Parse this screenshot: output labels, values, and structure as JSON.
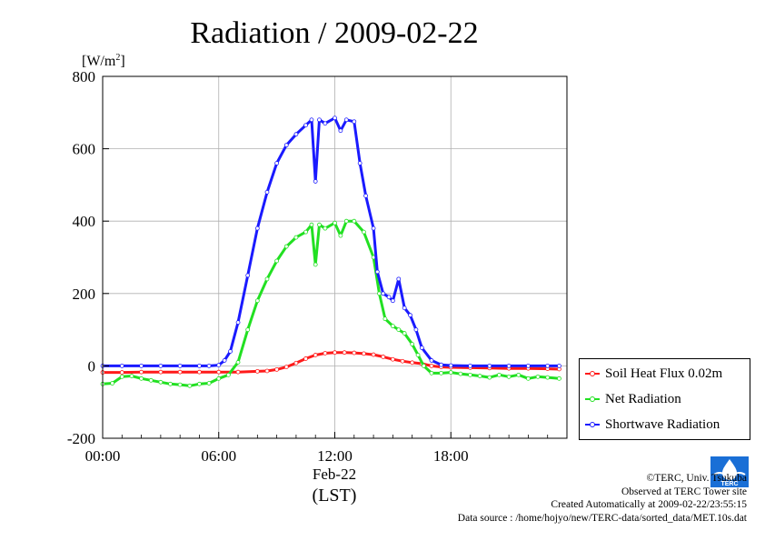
{
  "chart_data": {
    "type": "line",
    "title": "Radiation / 2009-02-22",
    "ylabel_unit": "[W/m",
    "ylabel_sup": "2",
    "ylabel_close": "]",
    "ylim": [
      -200,
      800
    ],
    "yticks": [
      -200,
      0,
      200,
      400,
      600,
      800
    ],
    "xlim": [
      0,
      24
    ],
    "xticks": [
      {
        "x": 0,
        "label": "00:00"
      },
      {
        "x": 6,
        "label": "06:00"
      },
      {
        "x": 12,
        "label": "12:00"
      },
      {
        "x": 18,
        "label": "18:00"
      }
    ],
    "xlabel_date": "Feb-22",
    "xlabel": "(LST)",
    "grid": true,
    "legend_placement": "right",
    "series": [
      {
        "name": "Soil Heat Flux 0.02m",
        "color": "#ff1a1a",
        "x": [
          0,
          1,
          2,
          3,
          4,
          5,
          6,
          7,
          8,
          8.5,
          9,
          9.5,
          10,
          10.5,
          11,
          11.5,
          12,
          12.5,
          13,
          13.5,
          14,
          14.5,
          15,
          15.5,
          16,
          16.5,
          17,
          17.5,
          18,
          19,
          20,
          21,
          22,
          23,
          23.6
        ],
        "y": [
          -18,
          -18,
          -17,
          -17,
          -17,
          -17,
          -17,
          -17,
          -15,
          -14,
          -10,
          -3,
          8,
          20,
          30,
          35,
          37,
          37,
          36,
          34,
          31,
          25,
          18,
          13,
          9,
          6,
          0,
          -3,
          -4,
          -5,
          -6,
          -7,
          -7,
          -8,
          -9
        ]
      },
      {
        "name": "Net Radiation",
        "color": "#22e022",
        "x": [
          0,
          0.5,
          1,
          1.5,
          2,
          2.5,
          3,
          3.5,
          4,
          4.5,
          5,
          5.5,
          6,
          6.5,
          7,
          7.5,
          8,
          8.5,
          9,
          9.5,
          10,
          10.5,
          10.8,
          11,
          11.2,
          11.5,
          12,
          12.3,
          12.6,
          13,
          13.5,
          14,
          14.3,
          14.6,
          15,
          15.3,
          15.6,
          16,
          16.3,
          16.6,
          17,
          17.5,
          18,
          18.5,
          19,
          19.5,
          20,
          20.5,
          21,
          21.5,
          22,
          22.5,
          23,
          23.6
        ],
        "y": [
          -50,
          -48,
          -30,
          -28,
          -35,
          -40,
          -45,
          -50,
          -52,
          -55,
          -50,
          -48,
          -35,
          -25,
          10,
          100,
          180,
          240,
          290,
          330,
          355,
          370,
          390,
          280,
          390,
          380,
          395,
          360,
          400,
          400,
          370,
          300,
          200,
          130,
          110,
          100,
          90,
          60,
          30,
          0,
          -20,
          -20,
          -18,
          -22,
          -25,
          -28,
          -32,
          -25,
          -30,
          -25,
          -35,
          -30,
          -32,
          -35
        ]
      },
      {
        "name": "Shortwave Radiation",
        "color": "#1a1aff",
        "x": [
          0,
          1,
          2,
          3,
          4,
          5,
          5.5,
          6,
          6.3,
          6.6,
          7,
          7.5,
          8,
          8.5,
          9,
          9.5,
          10,
          10.5,
          10.8,
          11,
          11.2,
          11.5,
          12,
          12.3,
          12.6,
          13,
          13.3,
          13.6,
          14,
          14.2,
          14.5,
          14.8,
          15,
          15.3,
          15.6,
          15.9,
          16.2,
          16.5,
          17,
          17.5,
          18,
          19,
          20,
          21,
          22,
          23,
          23.6
        ],
        "y": [
          0,
          0,
          0,
          0,
          0,
          0,
          0,
          2,
          15,
          40,
          120,
          250,
          380,
          480,
          560,
          610,
          640,
          665,
          680,
          510,
          680,
          670,
          685,
          650,
          680,
          675,
          560,
          470,
          380,
          260,
          200,
          190,
          180,
          240,
          160,
          140,
          100,
          50,
          15,
          3,
          1,
          0,
          0,
          0,
          0,
          0,
          0
        ]
      }
    ]
  },
  "credits": {
    "line1": "©TERC, Univ. Tsukuba",
    "line2": "Observed at TERC Tower site",
    "line3": "Created Automatically at 2009-02-22/23:55:15",
    "line4": "Data source : /home/hojyo/new/TERC-data/sorted_data/MET.10s.dat"
  },
  "logo": {
    "text": "TERC",
    "color": "#1a6fd6",
    "icon": "terc-water-drop-logo"
  }
}
